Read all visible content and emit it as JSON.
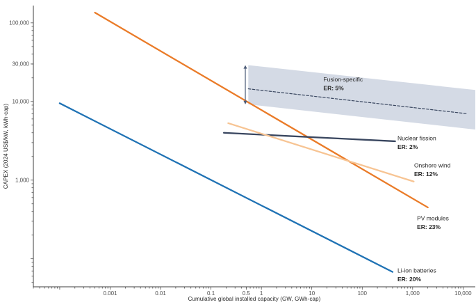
{
  "chart_data": {
    "type": "line",
    "title": "",
    "xlabel": "Cumulative global installed capacity (GW, GWh-cap)",
    "ylabel": "CAPEX (2024 US$/kW, kWh-cap)",
    "xscale": "log",
    "yscale": "log",
    "xlim": [
      3e-05,
      17500
    ],
    "ylim": [
      44,
      166000
    ],
    "grid": false,
    "legend": "inline-labels",
    "axis_color": "#3d3d3d",
    "tick_label_color": "#4d4d4d",
    "text_color": "#262626",
    "x_ticks": [
      {
        "v": 0.001,
        "label": "0.001"
      },
      {
        "v": 0.01,
        "label": "0.01"
      },
      {
        "v": 0.1,
        "label": "0.1"
      },
      {
        "v": 0.5,
        "label": "0.5"
      },
      {
        "v": 1,
        "label": "1"
      },
      {
        "v": 10,
        "label": "10"
      },
      {
        "v": 100,
        "label": "100"
      },
      {
        "v": 1000,
        "label": "1,000"
      },
      {
        "v": 10000,
        "label": "10,000"
      }
    ],
    "y_ticks": [
      {
        "v": 1000,
        "label": "1,000"
      },
      {
        "v": 10000,
        "label": "10,000"
      },
      {
        "v": 30000,
        "label": "30,000"
      },
      {
        "v": 100000,
        "label": "100,000"
      }
    ],
    "series": [
      {
        "id": "pv-modules",
        "name": "PV modules",
        "er": "ER: 23%",
        "experience_rate_pct": 23,
        "color": "#ea7b28",
        "style": "solid",
        "width": 2.3,
        "points": [
          [
            0.0005,
            135000
          ],
          [
            2000,
            450
          ]
        ]
      },
      {
        "id": "li-ion-batteries",
        "name": "Li-ion batteries",
        "er": "ER: 20%",
        "experience_rate_pct": 20,
        "color": "#1f72b4",
        "style": "solid",
        "width": 2.3,
        "points": [
          [
            0.0001,
            9500
          ],
          [
            400,
            68
          ]
        ]
      },
      {
        "id": "nuclear-fission",
        "name": "Nuclear fission",
        "er": "ER: 2%",
        "experience_rate_pct": 2,
        "color": "#39465f",
        "style": "solid",
        "width": 2.3,
        "points": [
          [
            0.18,
            4000
          ],
          [
            450,
            3120
          ]
        ]
      },
      {
        "id": "onshore-wind",
        "name": "Onshore wind",
        "er": "ER: 12%",
        "experience_rate_pct": 12,
        "color": "#f7c493",
        "style": "solid",
        "width": 2.3,
        "points": [
          [
            0.22,
            5300
          ],
          [
            1050,
            960
          ]
        ]
      },
      {
        "id": "fusion-specific",
        "name": "Fusion-specific",
        "er": "ER: 5%",
        "experience_rate_pct": 5,
        "color": "#39465f",
        "style": "dashed",
        "width": 1.2,
        "points": [
          [
            0.55,
            14500
          ],
          [
            12000,
            7000
          ]
        ]
      }
    ],
    "band": {
      "id": "fusion-uncertainty-band",
      "color": "#ccd4e0",
      "opacity": 0.85,
      "upper": [
        [
          0.55,
          29000
        ],
        [
          17500,
          14000
        ]
      ],
      "lower": [
        [
          0.55,
          9200
        ],
        [
          17500,
          4400
        ]
      ]
    },
    "arrow": {
      "x": 0.48,
      "y_bottom": 9200,
      "y_top": 29000,
      "color": "#4b5b77"
    },
    "annotations": [
      {
        "id": "fusion-specific",
        "label": "Fusion-specific",
        "er": "ER: 5%",
        "x": 17,
        "y": 19000
      },
      {
        "id": "nuclear-fission",
        "label": "Nuclear fission",
        "er": "ER: 2%",
        "x": 500,
        "y": 3380
      },
      {
        "id": "onshore-wind",
        "label": "Onshore wind",
        "er": "ER: 12%",
        "x": 1070,
        "y": 1525
      },
      {
        "id": "pv-modules",
        "label": "PV modules",
        "er": "ER: 23%",
        "x": 1220,
        "y": 324
      },
      {
        "id": "li-ion-batteries",
        "label": "Li-ion batteries",
        "er": "ER: 20%",
        "x": 500,
        "y": 70
      }
    ]
  }
}
